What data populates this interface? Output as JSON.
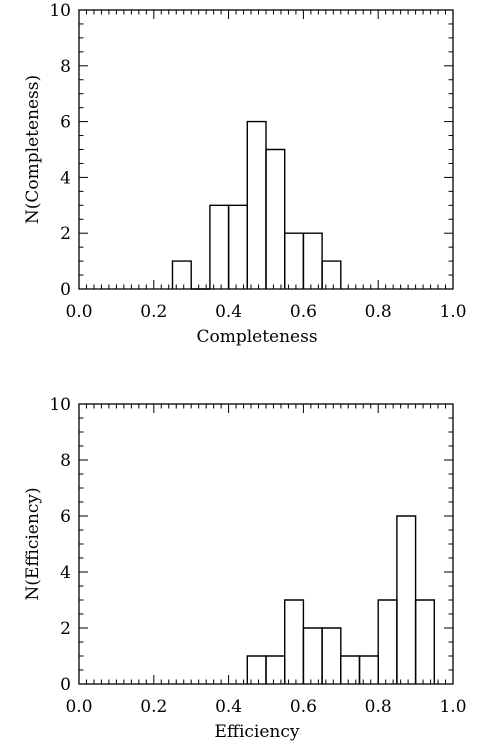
{
  "chart_data": [
    {
      "type": "histogram",
      "title": "",
      "xlabel": "Completeness",
      "ylabel": "N(Completeness)",
      "xlim": [
        0.0,
        1.0
      ],
      "ylim": [
        0,
        10
      ],
      "xticks": [
        "0.0",
        "0.2",
        "0.4",
        "0.6",
        "0.8",
        "1.0"
      ],
      "yticks": [
        "0",
        "2",
        "4",
        "6",
        "8",
        "10"
      ],
      "bin_width": 0.05,
      "bin_edges": [
        0.25,
        0.3,
        0.35,
        0.4,
        0.45,
        0.5,
        0.55,
        0.6,
        0.65,
        0.7
      ],
      "counts": [
        1,
        0,
        3,
        3,
        6,
        5,
        2,
        2,
        1
      ],
      "grid": false,
      "colors": {
        "line": "#000000",
        "background": "#ffffff"
      }
    },
    {
      "type": "histogram",
      "title": "",
      "xlabel": "Efficiency",
      "ylabel": "N(Efficiency)",
      "xlim": [
        0.0,
        1.0
      ],
      "ylim": [
        0,
        10
      ],
      "xticks": [
        "0.0",
        "0.2",
        "0.4",
        "0.6",
        "0.8",
        "1.0"
      ],
      "yticks": [
        "0",
        "2",
        "4",
        "6",
        "8",
        "10"
      ],
      "bin_width": 0.05,
      "bin_edges": [
        0.45,
        0.5,
        0.55,
        0.6,
        0.65,
        0.7,
        0.75,
        0.8,
        0.85,
        0.9,
        0.95
      ],
      "counts": [
        1,
        1,
        3,
        2,
        2,
        1,
        1,
        3,
        6,
        3
      ],
      "grid": false,
      "colors": {
        "line": "#000000",
        "background": "#ffffff"
      }
    }
  ]
}
